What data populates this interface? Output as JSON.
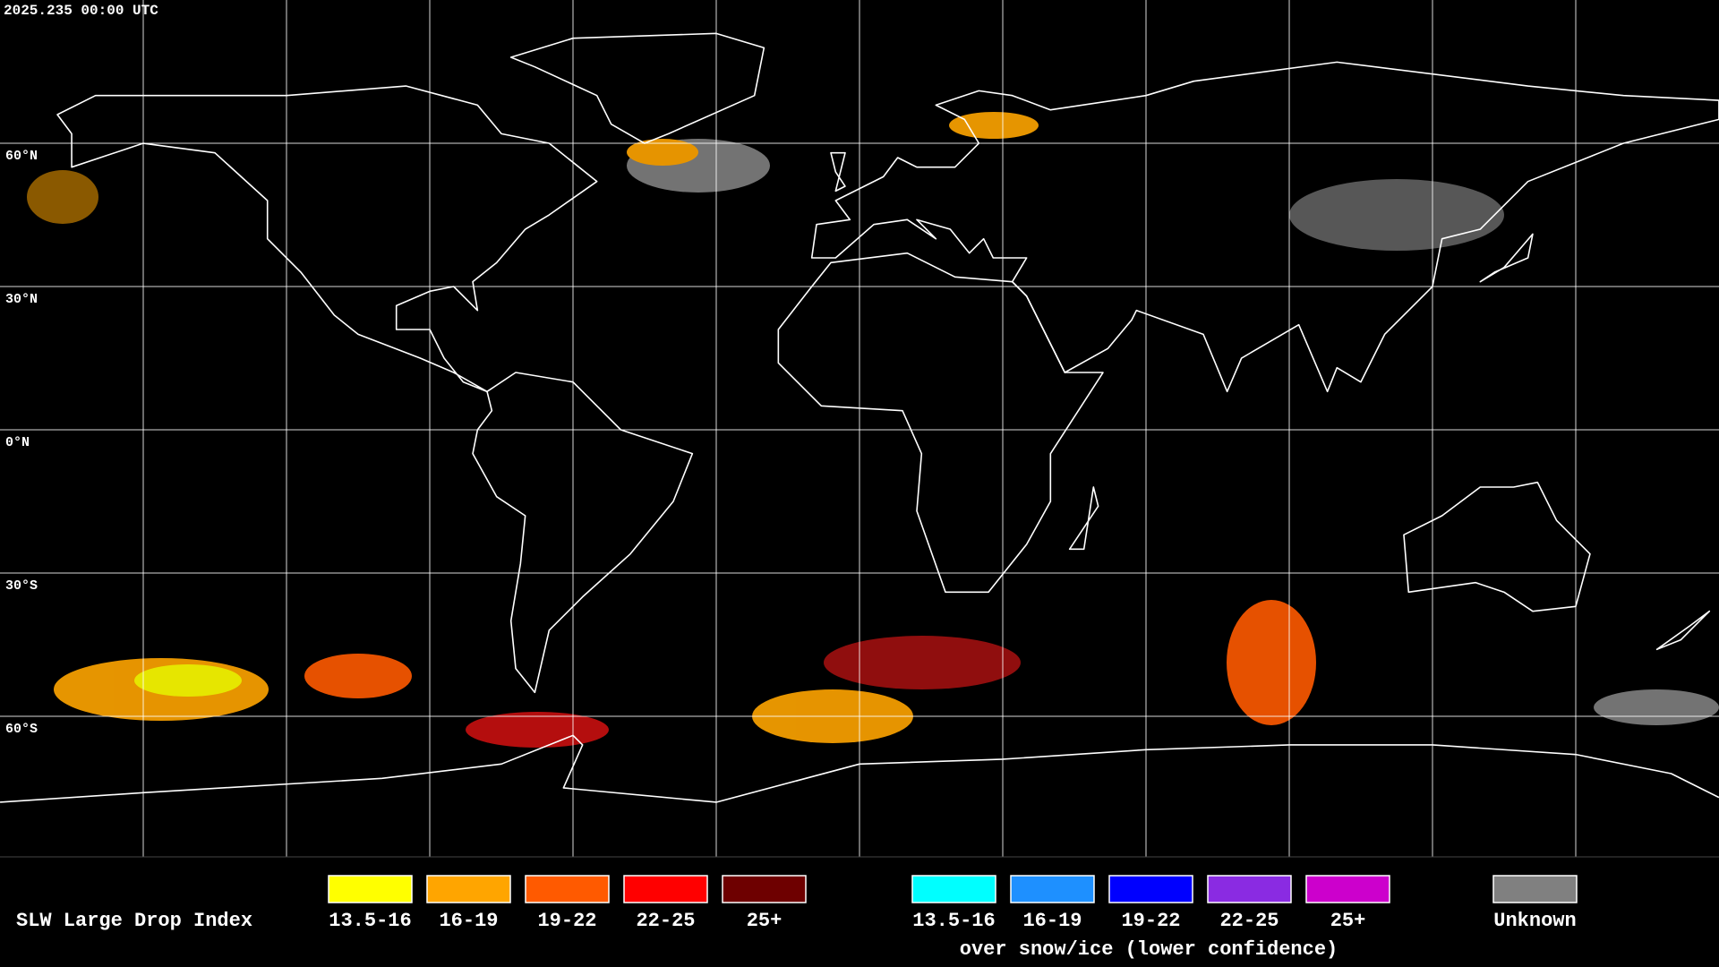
{
  "header": {
    "timestamp": "2025.235 00:00 UTC"
  },
  "map": {
    "lat_labels": [
      "60°N",
      "30°N",
      "0°N",
      "30°S",
      "60°S"
    ]
  },
  "legend": {
    "title": "SLW Large Drop Index",
    "standard": [
      {
        "label": "13.5-16",
        "color": "#ffff00"
      },
      {
        "label": "16-19",
        "color": "#ffa500"
      },
      {
        "label": "19-22",
        "color": "#ff5a00"
      },
      {
        "label": "22-25",
        "color": "#ff0000"
      },
      {
        "label": "25+",
        "color": "#6e0000"
      }
    ],
    "snow_ice": {
      "items": [
        {
          "label": "13.5-16",
          "color": "#00ffff"
        },
        {
          "label": "16-19",
          "color": "#1e90ff"
        },
        {
          "label": "19-22",
          "color": "#0000ff"
        },
        {
          "label": "22-25",
          "color": "#8a2be2"
        },
        {
          "label": "25+",
          "color": "#cc00cc"
        }
      ],
      "note": "over snow/ice (lower confidence)"
    },
    "unknown": {
      "label": "Unknown",
      "color": "#808080"
    }
  }
}
